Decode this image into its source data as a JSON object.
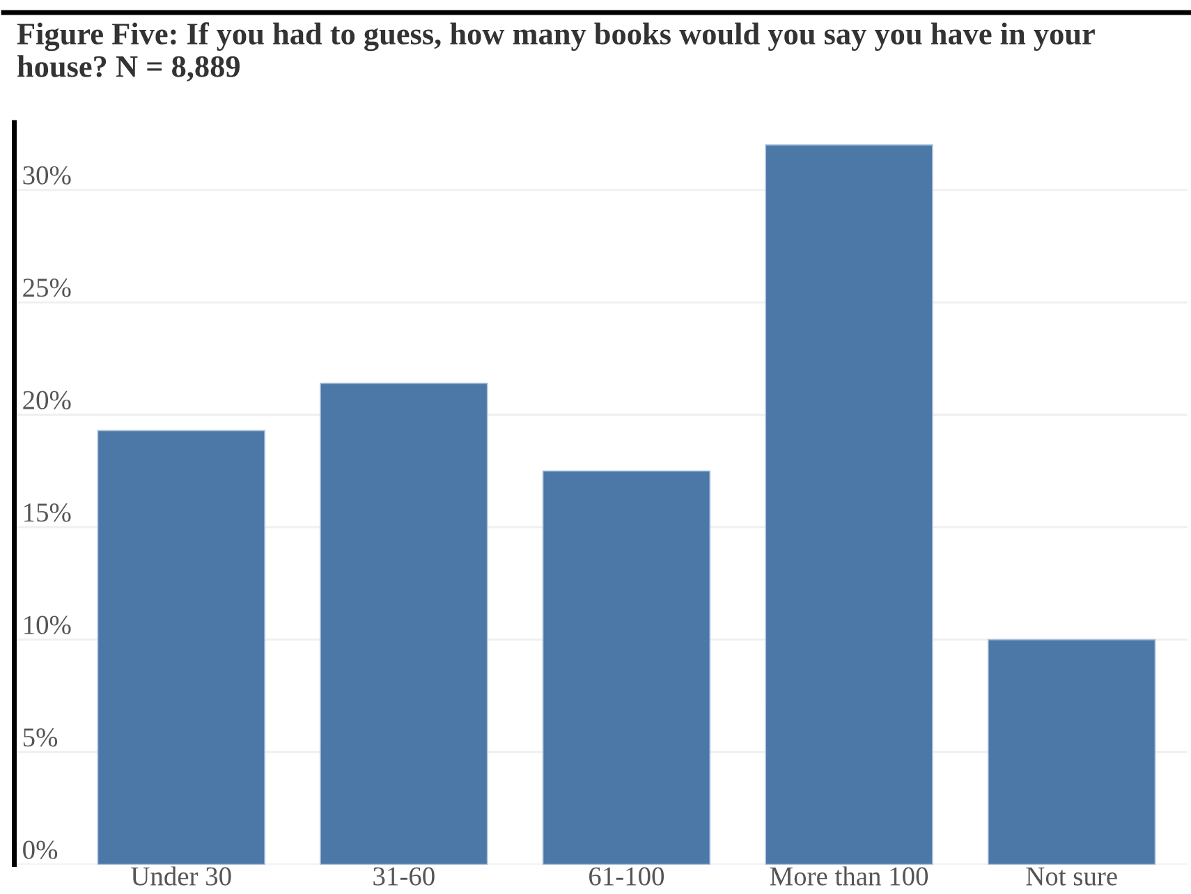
{
  "chart_data": {
    "type": "bar",
    "title": "Figure Five: If you had to guess, how many books would you say you have in your house? N = 8,889",
    "categories": [
      "Under 30",
      "31-60",
      "61-100",
      "More than 100",
      "Not sure"
    ],
    "values": [
      19.3,
      21.4,
      17.5,
      32.0,
      10.0
    ],
    "color": "#4c78a8",
    "ylim": [
      0,
      33
    ],
    "yticks": [
      {
        "value": 0,
        "label": "0%"
      },
      {
        "value": 5,
        "label": "5%"
      },
      {
        "value": 10,
        "label": "10%"
      },
      {
        "value": 15,
        "label": "15%"
      },
      {
        "value": 20,
        "label": "20%"
      },
      {
        "value": 25,
        "label": "25%"
      },
      {
        "value": 30,
        "label": "30%"
      }
    ],
    "grid": "y"
  }
}
